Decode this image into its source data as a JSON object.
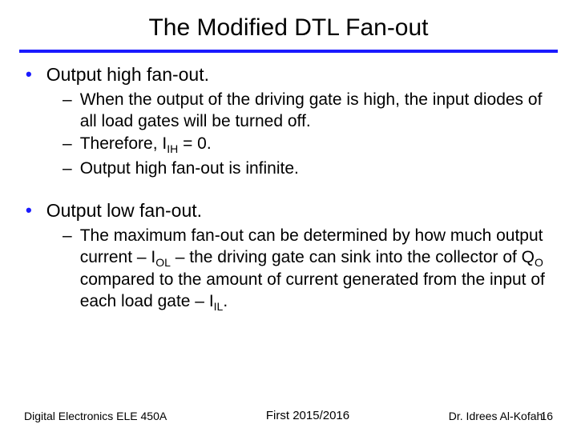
{
  "title": "The Modified DTL Fan-out",
  "section1": {
    "heading": "Output high fan-out.",
    "items": [
      "When the output of the driving gate is high, the input diodes of all load gates will be turned off.",
      "Therefore, I__IH__ = 0.",
      "Output high fan-out is infinite."
    ]
  },
  "section2": {
    "heading": "Output low fan-out.",
    "items": [
      "The maximum fan-out can be determined by how much output current – I__OL__ – the driving gate can sink into the collector of Q__O__ compared to the amount of current generated from the input of each load gate – I__IL__."
    ]
  },
  "footer": {
    "left": "Digital Electronics ELE 450A",
    "center": "First 2015/2016",
    "right": "Dr. Idrees Al-Kofahi",
    "page": "16"
  },
  "colors": {
    "accent": "#1a1aff",
    "text": "#000000",
    "background": "#ffffff"
  },
  "fonts": {
    "title_size": 30,
    "bullet_size": 23,
    "sub_size": 21,
    "footer_size": 14
  }
}
